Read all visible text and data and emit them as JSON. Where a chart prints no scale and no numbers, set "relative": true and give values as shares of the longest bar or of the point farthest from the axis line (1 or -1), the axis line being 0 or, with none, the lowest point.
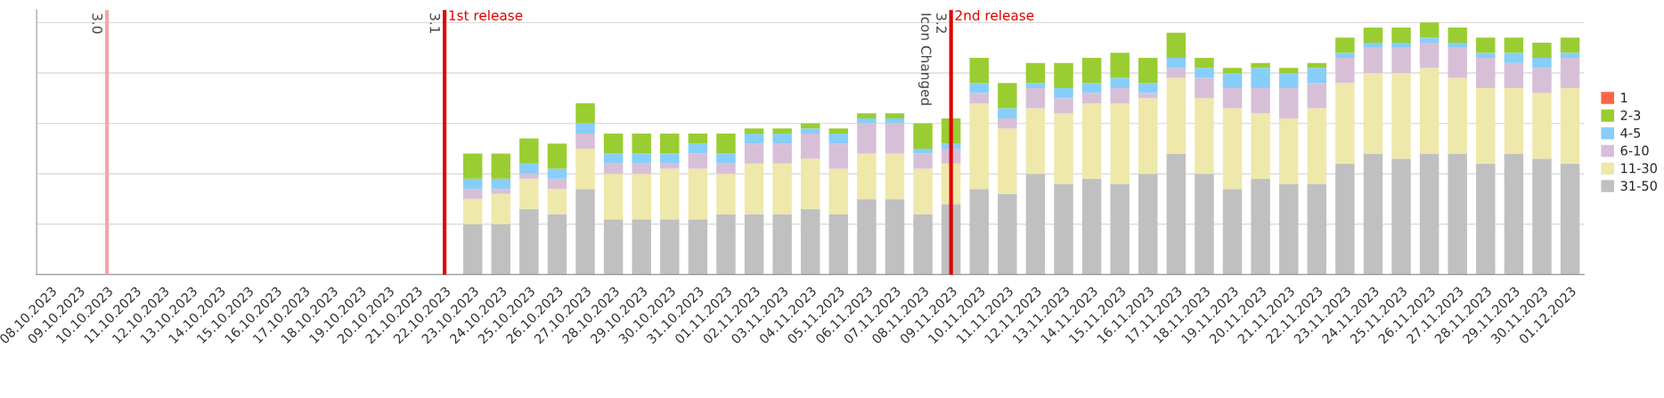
{
  "chart_data": {
    "type": "bar",
    "stacked": true,
    "relative": true,
    "grid": "y",
    "legend": "right",
    "categories": [
      "08.10.2023",
      "09.10.2023",
      "10.10.2023",
      "11.10.2023",
      "12.10.2023",
      "13.10.2023",
      "14.10.2023",
      "15.10.2023",
      "16.10.2023",
      "17.10.2023",
      "18.10.2023",
      "19.10.2023",
      "20.10.2023",
      "21.10.2023",
      "22.10.2023",
      "23.10.2023",
      "24.10.2023",
      "25.10.2023",
      "26.10.2023",
      "27.10.2023",
      "28.10.2023",
      "29.10.2023",
      "30.10.2023",
      "31.10.2023",
      "01.11.2023",
      "02.11.2023",
      "03.11.2023",
      "04.11.2023",
      "05.11.2023",
      "06.11.2023",
      "07.11.2023",
      "08.11.2023",
      "09.11.2023",
      "10.11.2023",
      "11.11.2023",
      "12.11.2023",
      "13.11.2023",
      "14.11.2023",
      "15.11.2023",
      "16.11.2023",
      "17.11.2023",
      "18.11.2023",
      "19.11.2023",
      "20.11.2023",
      "21.11.2023",
      "22.11.2023",
      "23.11.2023",
      "24.11.2023",
      "25.11.2023",
      "26.11.2023",
      "27.11.2023",
      "28.11.2023",
      "29.11.2023",
      "30.11.2023",
      "01.12.2023"
    ],
    "series": [
      {
        "name": "31-50",
        "color": "#c0c0c0",
        "values": [
          null,
          null,
          null,
          null,
          null,
          null,
          null,
          null,
          null,
          null,
          null,
          null,
          null,
          null,
          null,
          0.2,
          0.2,
          0.26,
          0.24,
          0.34,
          0.22,
          0.22,
          0.22,
          0.22,
          0.24,
          0.24,
          0.24,
          0.26,
          0.24,
          0.3,
          0.3,
          0.24,
          0.28,
          0.34,
          0.32,
          0.4,
          0.36,
          0.38,
          0.36,
          0.4,
          0.48,
          0.4,
          0.34,
          0.38,
          0.36,
          0.36,
          0.44,
          0.48,
          0.46,
          0.48,
          0.48,
          0.44,
          0.48,
          0.46,
          0.44
        ]
      },
      {
        "name": "11-30",
        "color": "#eee8aa",
        "values": [
          null,
          null,
          null,
          null,
          null,
          null,
          null,
          null,
          null,
          null,
          null,
          null,
          null,
          null,
          null,
          0.1,
          0.12,
          0.12,
          0.1,
          0.16,
          0.18,
          0.18,
          0.2,
          0.2,
          0.16,
          0.2,
          0.2,
          0.2,
          0.18,
          0.18,
          0.18,
          0.18,
          0.16,
          0.34,
          0.26,
          0.26,
          0.28,
          0.3,
          0.32,
          0.3,
          0.3,
          0.3,
          0.32,
          0.26,
          0.26,
          0.3,
          0.32,
          0.32,
          0.34,
          0.34,
          0.3,
          0.3,
          0.26,
          0.26,
          0.3
        ]
      },
      {
        "name": "6-10",
        "color": "#d8bfd8",
        "values": [
          null,
          null,
          null,
          null,
          null,
          null,
          null,
          null,
          null,
          null,
          null,
          null,
          null,
          null,
          null,
          0.04,
          0.02,
          0.02,
          0.04,
          0.06,
          0.04,
          0.04,
          0.02,
          0.06,
          0.04,
          0.08,
          0.08,
          0.1,
          0.1,
          0.12,
          0.12,
          0.06,
          0.06,
          0.04,
          0.04,
          0.08,
          0.06,
          0.04,
          0.06,
          0.02,
          0.04,
          0.08,
          0.08,
          0.1,
          0.12,
          0.1,
          0.1,
          0.1,
          0.1,
          0.1,
          0.12,
          0.12,
          0.1,
          0.1,
          0.12
        ]
      },
      {
        "name": "4-5",
        "color": "#87cefa",
        "values": [
          null,
          null,
          null,
          null,
          null,
          null,
          null,
          null,
          null,
          null,
          null,
          null,
          null,
          null,
          null,
          0.04,
          0.04,
          0.04,
          0.04,
          0.04,
          0.04,
          0.04,
          0.04,
          0.04,
          0.04,
          0.04,
          0.04,
          0.02,
          0.04,
          0.02,
          0.02,
          0.02,
          0.02,
          0.04,
          0.04,
          0.02,
          0.04,
          0.04,
          0.04,
          0.04,
          0.04,
          0.04,
          0.06,
          0.08,
          0.06,
          0.06,
          0.02,
          0.02,
          0.02,
          0.02,
          0.02,
          0.02,
          0.04,
          0.04,
          0.02
        ]
      },
      {
        "name": "2-3",
        "color": "#9acd32",
        "values": [
          null,
          null,
          null,
          null,
          null,
          null,
          null,
          null,
          null,
          null,
          null,
          null,
          null,
          null,
          null,
          0.1,
          0.1,
          0.1,
          0.1,
          0.08,
          0.08,
          0.08,
          0.08,
          0.04,
          0.08,
          0.02,
          0.02,
          0.02,
          0.02,
          0.02,
          0.02,
          0.1,
          0.1,
          0.1,
          0.1,
          0.08,
          0.1,
          0.1,
          0.1,
          0.1,
          0.1,
          0.04,
          0.02,
          0.02,
          0.02,
          0.02,
          0.06,
          0.06,
          0.06,
          0.06,
          0.06,
          0.06,
          0.06,
          0.06,
          0.06
        ]
      },
      {
        "name": "1",
        "color": "#ff6347",
        "values": [
          null,
          null,
          null,
          null,
          null,
          null,
          null,
          null,
          null,
          null,
          null,
          null,
          null,
          null,
          null,
          null,
          null,
          null,
          null,
          null,
          null,
          null,
          null,
          null,
          null,
          null,
          null,
          null,
          null,
          null,
          null,
          null,
          null,
          null,
          null,
          null,
          null,
          null,
          null,
          null,
          null,
          null,
          null,
          null,
          null,
          null,
          null,
          null,
          null,
          null,
          null,
          null,
          null,
          null,
          null
        ]
      }
    ],
    "ref_lines": [
      {
        "axis": "x",
        "value": "10.10.2023",
        "label": "3.0",
        "color": "#f4a6a6"
      },
      {
        "axis": "x",
        "value": "22.10.2023",
        "label": "3.1",
        "color": "#e00000"
      },
      {
        "axis": "x",
        "value": "09.11.2023",
        "label": "3.2\nIcon Changed",
        "color": "#e00000"
      }
    ],
    "annotations": [
      {
        "text": "1st release",
        "x": "22.10.2023"
      },
      {
        "text": "2nd release",
        "x": "09.11.2023"
      }
    ]
  }
}
